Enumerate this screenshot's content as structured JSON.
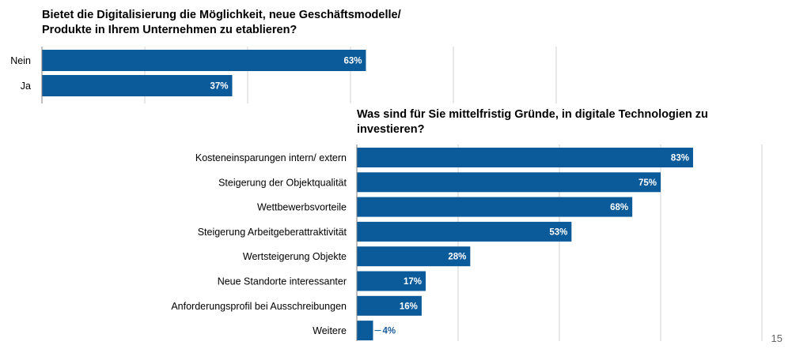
{
  "page_number": "15",
  "colors": {
    "bar": "#0b5a9a",
    "grid": "#d0d0d0",
    "axis": "#7f7f7f"
  },
  "chart_data": [
    {
      "type": "bar",
      "orientation": "horizontal",
      "title": "Bietet die Digitalisierung die Möglichkeit, neue Geschäftsmodelle/ Produkte in Ihrem Unternehmen zu etablieren?",
      "title_lines": [
        "Bietet die Digitalisierung die Möglichkeit, neue Geschäftsmodelle/",
        "Produkte in Ihrem Unternehmen zu etablieren?"
      ],
      "categories": [
        "Nein",
        "Ja"
      ],
      "values": [
        63,
        37
      ],
      "labels": [
        "63%",
        "37%"
      ],
      "xlim": [
        0,
        100
      ],
      "grid": true
    },
    {
      "type": "bar",
      "orientation": "horizontal",
      "title": "Was sind für Sie mittelfristig Gründe, in digitale Technologien zu investieren?",
      "title_lines": [
        "Was sind für Sie mittelfristig Gründe, in digitale Technologien zu",
        "investieren?"
      ],
      "categories": [
        "Kosteneinsparungen intern/ extern",
        "Steigerung der Objektqualität",
        "Wettbewerbsvorteile",
        "Steigerung Arbeitgeberattraktivität",
        "Wertsteigerung Objekte",
        "Neue Standorte interessanter",
        "Anforderungsprofil bei Ausschreibungen",
        "Weitere"
      ],
      "values": [
        83,
        75,
        68,
        53,
        28,
        17,
        16,
        4
      ],
      "labels": [
        "83%",
        "75%",
        "68%",
        "53%",
        "28%",
        "17%",
        "16%",
        "4%"
      ],
      "xlim": [
        0,
        100
      ],
      "grid": true
    }
  ]
}
